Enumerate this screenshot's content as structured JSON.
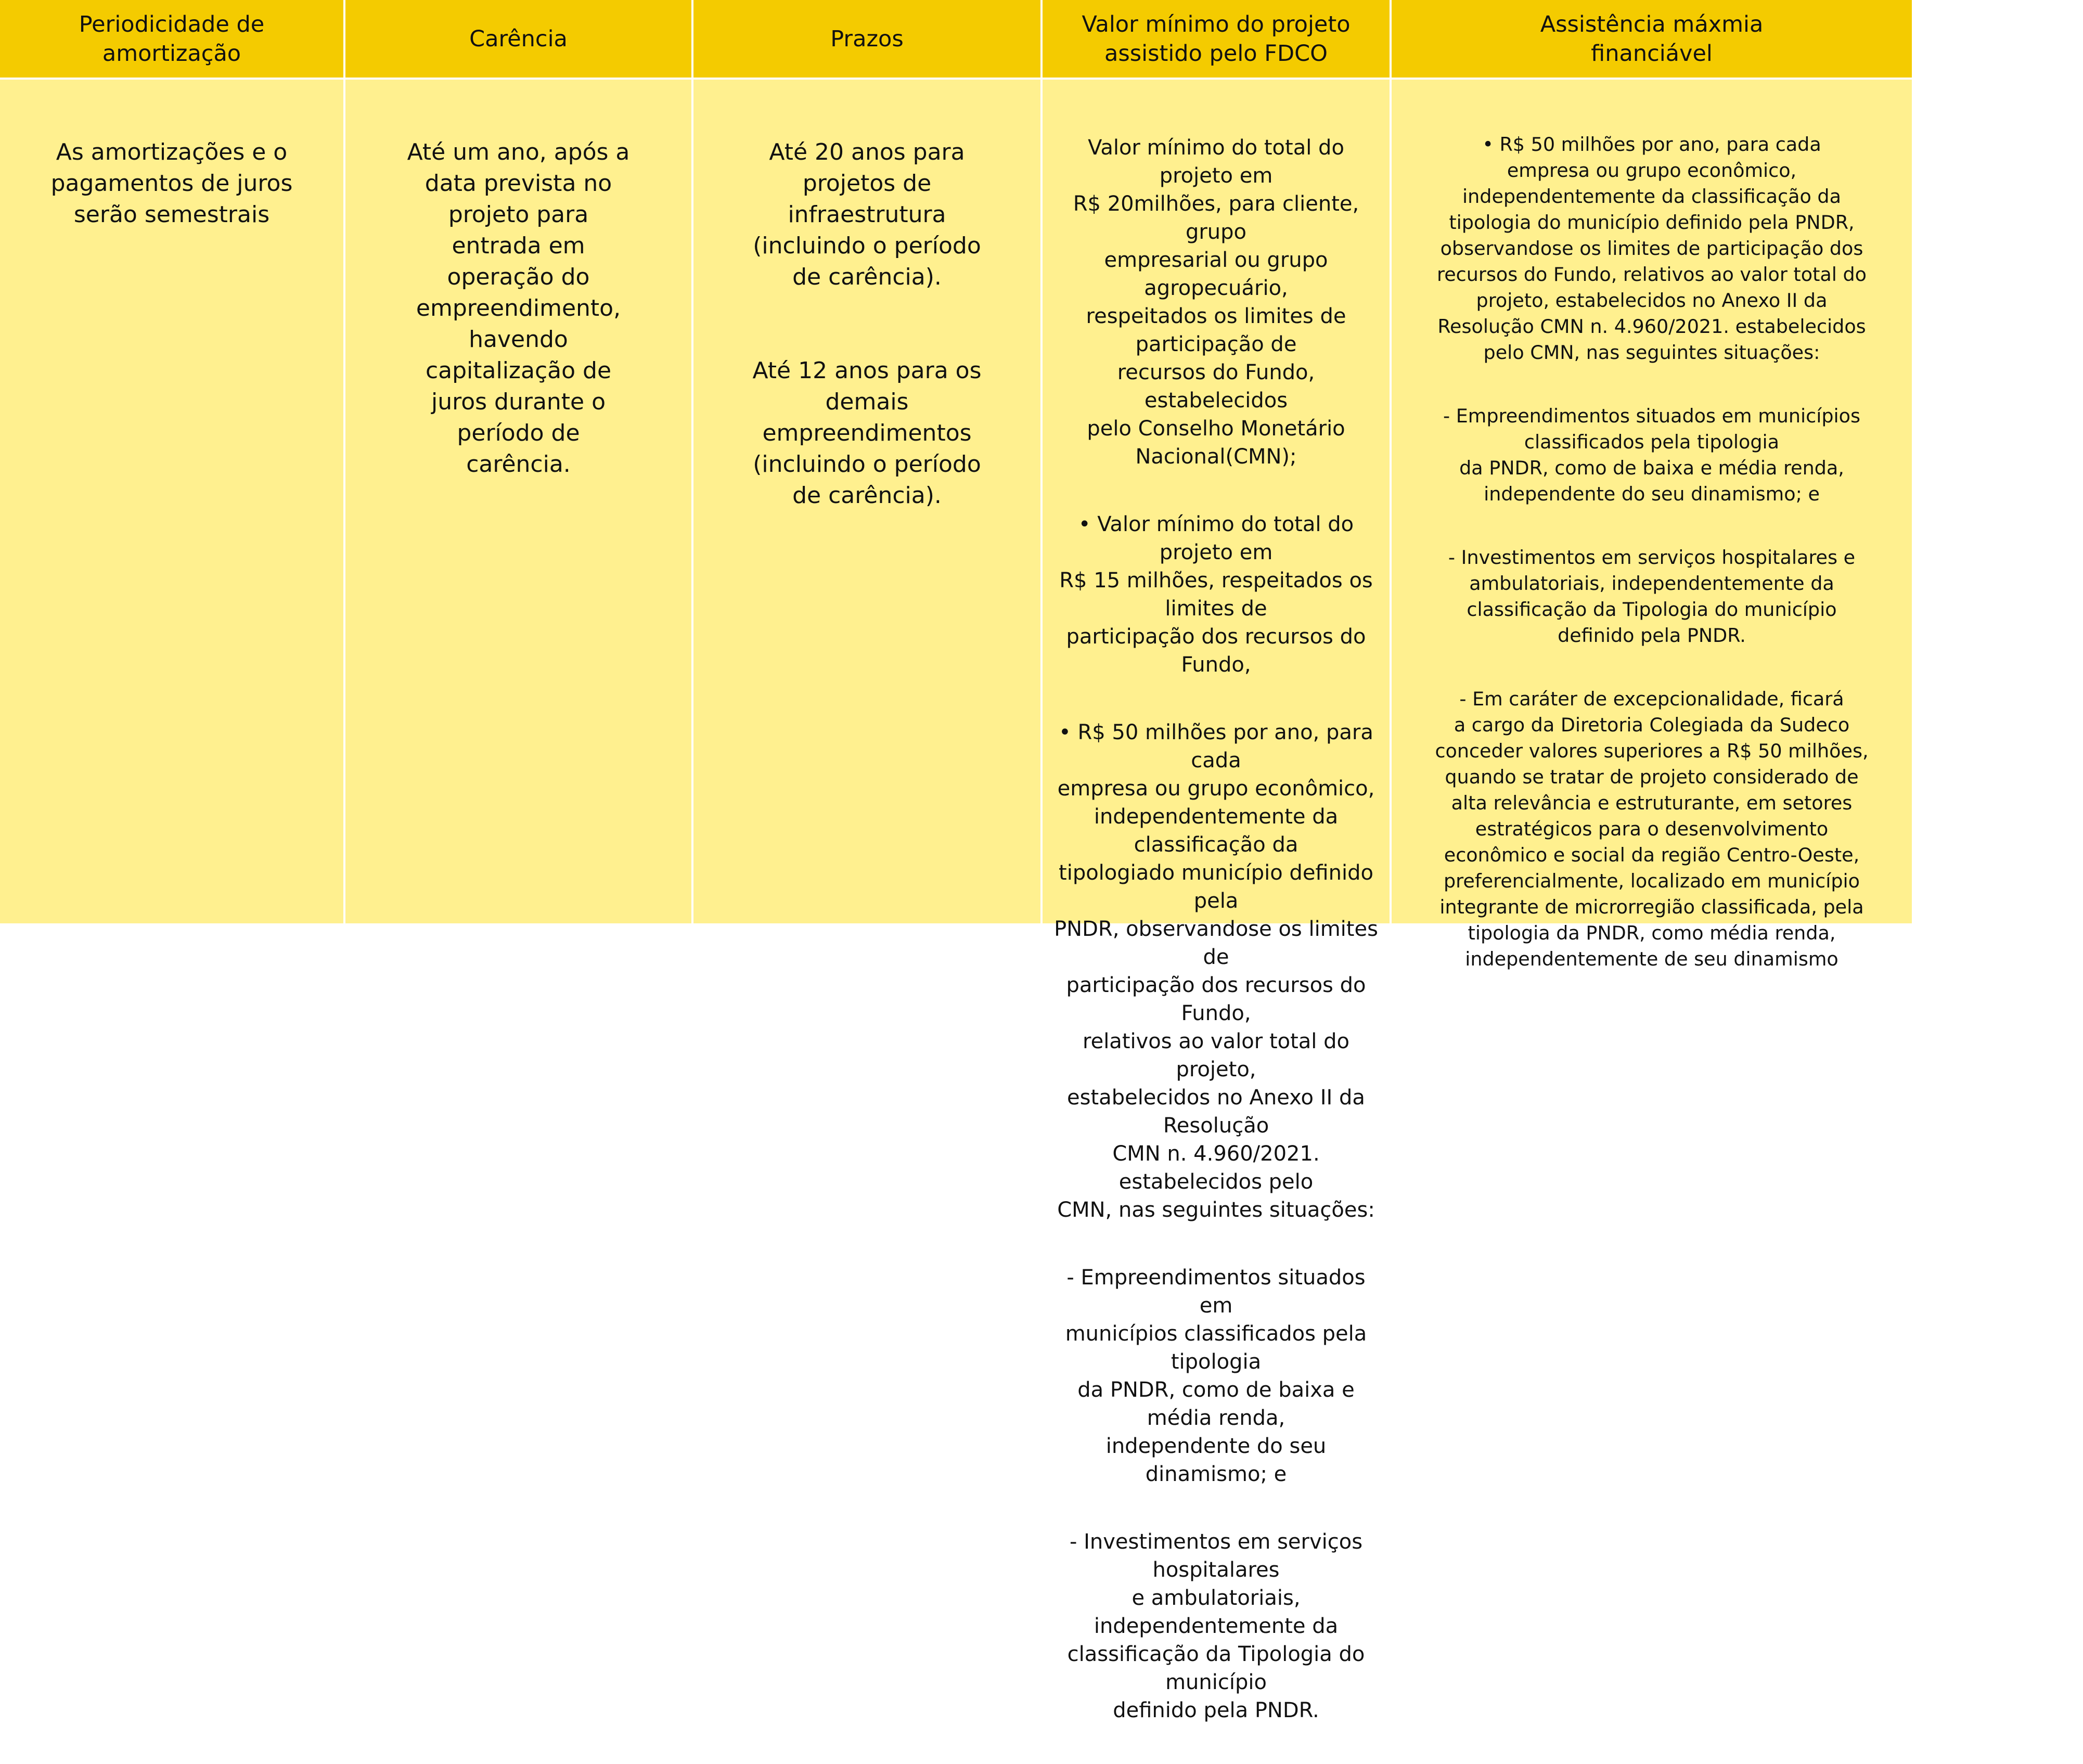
{
  "colors": {
    "header_bg": "#f4cb00",
    "body_bg": "#fff08f",
    "grid_lines": "#ffffff"
  },
  "headers": [
    "Periodicidade de\namortização",
    "Carência",
    "Prazos",
    "Valor mínimo do projeto\nassistido pelo FDCO",
    "Assistência máxmia\nfinanciável"
  ],
  "row": {
    "periodicidade": [
      "As amortizações e o\npagamentos de juros\nserão semestrais"
    ],
    "carencia": [
      "Até um ano, após a\ndata prevista no\nprojeto para\nentrada em\noperação do\nempreendimento,\nhavendo\ncapitalização de\njuros durante o\nperíodo de\ncarência."
    ],
    "prazos": [
      "Até 20 anos para\nprojetos de\ninfraestrutura\n(incluindo o período\nde carência).",
      "Até 12 anos para os\ndemais\nempreendimentos\n(incluindo o período\nde carência)."
    ],
    "valor_minimo": [
      "Valor mínimo do total do projeto em\nR$ 20milhões, para cliente, grupo\nempresarial ou grupo agropecuário,\nrespeitados os limites de participação de\nrecursos do Fundo, estabelecidos\npelo Conselho Monetário Nacional(CMN);",
      "• Valor mínimo do total do projeto em\nR$ 15 milhões, respeitados os limites de\nparticipação dos recursos do Fundo,",
      "• R$ 50 milhões por ano, para cada\nempresa ou grupo econômico,\nindependentemente da classificação da\ntipologiado município definido pela\nPNDR, observandose os limites de\nparticipação dos recursos do Fundo,\nrelativos ao valor total do projeto,\nestabelecidos no Anexo II da Resolução\nCMN n. 4.960/2021. estabelecidos pelo\nCMN, nas seguintes situações:",
      "- Empreendimentos situados em\nmunicípios classificados pela tipologia\nda PNDR, como de baixa e média renda,\nindependente do seu dinamismo; e",
      "- Investimentos em serviços hospitalares\ne ambulatoriais, independentemente da\nclassificação da Tipologia do município\ndefinido pela PNDR."
    ],
    "assistencia_maxima": [
      "• R$ 50 milhões por ano, para cada\nempresa ou grupo econômico,\nindependentemente da classificação da\ntipologia do município definido pela PNDR,\nobservandose os limites de participação dos\nrecursos do Fundo, relativos ao valor total do\nprojeto, estabelecidos no Anexo II da\nResolução CMN  n. 4.960/2021. estabelecidos\npelo CMN, nas seguintes situações:",
      "- Empreendimentos situados em municípios\nclassificados pela tipologia\nda PNDR, como de baixa e média renda,\nindependente do seu dinamismo; e",
      "- Investimentos em serviços hospitalares e\nambulatoriais, independentemente da\nclassificação da Tipologia do município\ndefinido pela PNDR.",
      "- Em caráter de excepcionalidade, ficará\na cargo da Diretoria Colegiada da Sudeco\nconceder valores superiores a R$ 50 milhões,\nquando se tratar de projeto considerado de\nalta relevância e estruturante, em setores\nestratégicos para o desenvolvimento\neconômico e social da região Centro-Oeste,\npreferencialmente, localizado em município\nintegrante de microrregião classificada, pela\ntipologia da PNDR, como média renda,\nindependentemente de seu dinamismo"
    ]
  }
}
